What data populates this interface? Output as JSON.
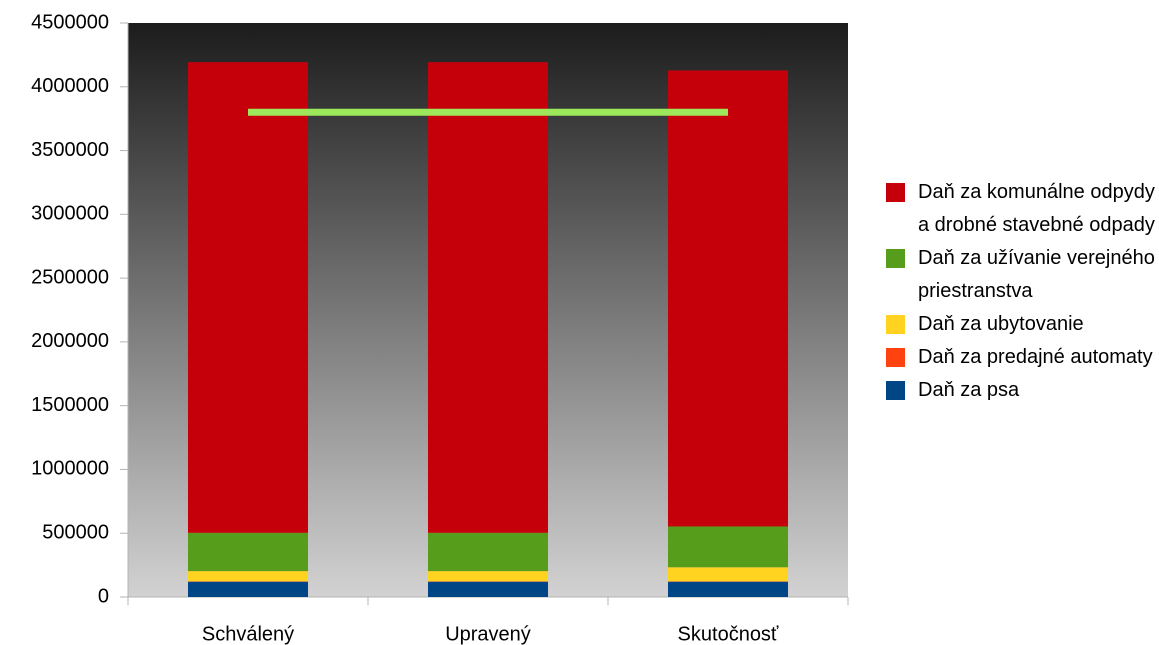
{
  "chart_data": {
    "type": "stacked-bar",
    "categories": [
      "Schválený",
      "Upravený",
      "Skutočnosť"
    ],
    "series": [
      {
        "name": "Daň za psa",
        "color": "#004586",
        "values": [
          120000,
          120000,
          120000
        ]
      },
      {
        "name": "Daň za predajné automaty",
        "color": "#ff420e",
        "values": [
          3000,
          3000,
          3000
        ]
      },
      {
        "name": "Daň za ubytovanie",
        "color": "#ffd320",
        "values": [
          80000,
          80000,
          110000
        ]
      },
      {
        "name": "Daň za užívanie verejného priestranstva",
        "color": "#579d1c",
        "values": [
          300000,
          300000,
          320000
        ]
      },
      {
        "name": "Daň za komunálne odpydy a drobné stavebné odpady",
        "color": "#c5000b",
        "values": [
          3690000,
          3690000,
          3575000
        ]
      }
    ],
    "reference_line": {
      "color": "#9de75a",
      "values": [
        3800000,
        3800000,
        3800000
      ]
    },
    "ylim": [
      0,
      4500000
    ],
    "yticks": [
      0,
      500000,
      1000000,
      1500000,
      2000000,
      2500000,
      3000000,
      3500000,
      4000000,
      4500000
    ],
    "legend": "right"
  }
}
